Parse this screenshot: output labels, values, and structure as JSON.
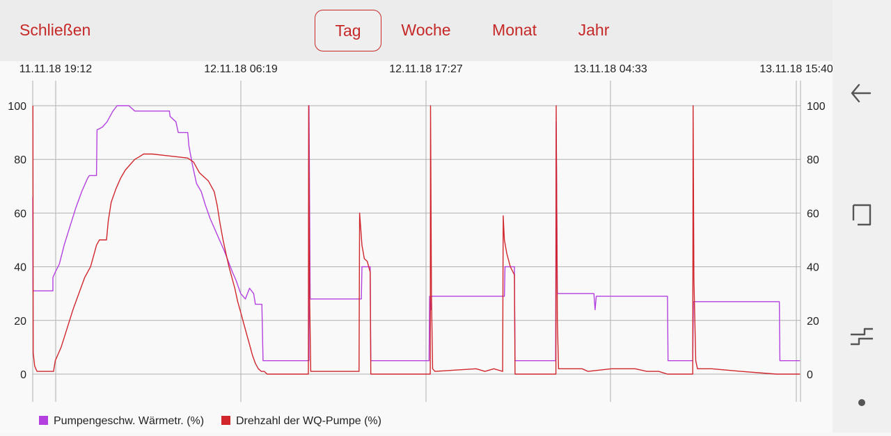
{
  "header": {
    "close_label": "Schließen",
    "tabs": [
      {
        "label": "Tag",
        "active": true
      },
      {
        "label": "Woche",
        "active": false
      },
      {
        "label": "Monat",
        "active": false
      },
      {
        "label": "Jahr",
        "active": false
      }
    ]
  },
  "colors": {
    "accent": "#c62828",
    "series_purple": "#b440e0",
    "series_red": "#d0262c",
    "grid": "#aaaaaa"
  },
  "nav_icons": [
    "back-icon",
    "recents-icon",
    "switch-icon",
    "dot-icon"
  ],
  "chart_data": {
    "type": "line",
    "title": "",
    "xlabel": "",
    "ylabel": "",
    "ylim": [
      0,
      100
    ],
    "y_ticks": [
      0,
      20,
      40,
      60,
      80,
      100
    ],
    "x_ticks": [
      "11.11.18 19:12",
      "12.11.18 06:19",
      "12.11.18 17:27",
      "13.11.18 04:33",
      "13.11.18 15:40"
    ],
    "x_unit": "hours since first tick",
    "grid": true,
    "legend": "bottom-left",
    "series": [
      {
        "name": "Pumpengeschw. Wärmetr. (%)",
        "color": "#b440e0",
        "points": [
          [
            -0.32,
            66
          ],
          [
            -0.3,
            33
          ],
          [
            -0.28,
            31
          ],
          [
            0.0,
            31
          ],
          [
            3.1,
            31
          ],
          [
            3.1,
            36
          ],
          [
            3.5,
            38
          ],
          [
            4.2,
            41
          ],
          [
            5.0,
            48
          ],
          [
            6.0,
            55
          ],
          [
            7.0,
            62
          ],
          [
            8.0,
            68
          ],
          [
            9.0,
            73
          ],
          [
            9.3,
            74
          ],
          [
            10.5,
            74
          ],
          [
            10.6,
            91
          ],
          [
            11.5,
            92
          ],
          [
            12.3,
            94
          ],
          [
            12.8,
            96
          ],
          [
            13.3,
            98
          ],
          [
            14.0,
            100
          ],
          [
            16.0,
            100
          ],
          [
            17.0,
            98
          ],
          [
            22.9,
            98
          ],
          [
            23.0,
            96
          ],
          [
            23.5,
            95
          ],
          [
            24.0,
            94
          ],
          [
            24.2,
            92
          ],
          [
            24.4,
            90
          ],
          [
            26.0,
            90
          ],
          [
            26.2,
            85
          ],
          [
            26.8,
            78
          ],
          [
            27.5,
            71
          ],
          [
            28.3,
            68
          ],
          [
            29.0,
            63
          ],
          [
            29.8,
            58
          ],
          [
            30.6,
            54
          ],
          [
            31.4,
            50
          ],
          [
            32.2,
            46
          ],
          [
            32.9,
            42
          ],
          [
            33.6,
            38
          ],
          [
            34.2,
            35
          ],
          [
            35.0,
            30
          ],
          [
            35.8,
            28
          ],
          [
            36.5,
            32
          ],
          [
            37.2,
            30
          ],
          [
            37.5,
            26
          ],
          [
            38.3,
            26
          ],
          [
            38.6,
            26
          ],
          [
            38.8,
            5
          ],
          [
            46.6,
            5
          ],
          [
            46.6,
            100
          ],
          [
            46.8,
            28
          ],
          [
            47.0,
            28
          ],
          [
            55.5,
            28
          ],
          [
            55.6,
            40
          ],
          [
            56.0,
            40
          ],
          [
            57.0,
            40
          ],
          [
            57.1,
            5
          ],
          [
            67.0,
            5
          ],
          [
            67.1,
            29
          ],
          [
            67.3,
            24
          ],
          [
            67.4,
            29
          ],
          [
            79.8,
            29
          ],
          [
            79.9,
            40
          ],
          [
            81.5,
            40
          ],
          [
            81.6,
            5
          ],
          [
            88.5,
            5
          ],
          [
            88.6,
            94
          ],
          [
            88.8,
            30
          ],
          [
            95.0,
            30
          ],
          [
            95.2,
            24
          ],
          [
            95.4,
            29
          ],
          [
            107.5,
            29
          ],
          [
            107.6,
            5
          ],
          [
            111.8,
            5
          ],
          [
            111.9,
            27
          ],
          [
            126.5,
            27
          ],
          [
            126.6,
            5
          ],
          [
            130.0,
            5
          ]
        ]
      },
      {
        "name": "Drehzahl der WQ-Pumpe (%)",
        "color": "#d0262c",
        "points": [
          [
            -0.3,
            100
          ],
          [
            -0.25,
            8
          ],
          [
            0.0,
            3
          ],
          [
            0.2,
            2
          ],
          [
            0.4,
            1
          ],
          [
            3.2,
            1
          ],
          [
            3.5,
            5
          ],
          [
            4.5,
            10
          ],
          [
            5.5,
            17
          ],
          [
            6.5,
            24
          ],
          [
            7.5,
            30
          ],
          [
            8.5,
            36
          ],
          [
            9.5,
            40
          ],
          [
            10.0,
            44
          ],
          [
            10.5,
            48
          ],
          [
            11.0,
            50
          ],
          [
            12.2,
            50
          ],
          [
            12.5,
            57
          ],
          [
            13.0,
            64
          ],
          [
            13.8,
            69
          ],
          [
            14.6,
            73
          ],
          [
            15.4,
            76
          ],
          [
            16.2,
            78
          ],
          [
            17.0,
            80
          ],
          [
            17.8,
            81
          ],
          [
            18.5,
            82
          ],
          [
            20.0,
            82
          ],
          [
            22.0,
            81.5
          ],
          [
            24.0,
            81
          ],
          [
            26.0,
            80.5
          ],
          [
            27.0,
            79
          ],
          [
            27.5,
            77
          ],
          [
            28.0,
            75
          ],
          [
            28.5,
            74
          ],
          [
            29.5,
            72
          ],
          [
            30.0,
            70
          ],
          [
            30.5,
            68
          ],
          [
            31.0,
            63
          ],
          [
            31.5,
            56
          ],
          [
            32.0,
            50
          ],
          [
            32.5,
            45
          ],
          [
            33.0,
            40
          ],
          [
            33.5,
            36
          ],
          [
            34.0,
            32
          ],
          [
            34.5,
            27
          ],
          [
            35.0,
            23
          ],
          [
            35.5,
            19
          ],
          [
            36.0,
            15
          ],
          [
            36.5,
            11
          ],
          [
            37.0,
            7
          ],
          [
            37.5,
            4
          ],
          [
            38.0,
            2
          ],
          [
            38.5,
            1
          ],
          [
            39.0,
            1
          ],
          [
            39.5,
            0
          ],
          [
            46.5,
            0
          ],
          [
            46.55,
            100
          ],
          [
            46.7,
            31
          ],
          [
            46.9,
            1
          ],
          [
            54.5,
            1
          ],
          [
            55.1,
            1
          ],
          [
            55.2,
            60
          ],
          [
            55.6,
            48
          ],
          [
            56.0,
            43
          ],
          [
            56.5,
            42
          ],
          [
            57.0,
            38
          ],
          [
            57.1,
            0
          ],
          [
            67.2,
            0
          ],
          [
            67.25,
            100
          ],
          [
            67.4,
            30
          ],
          [
            67.6,
            2
          ],
          [
            68.0,
            1
          ],
          [
            75.0,
            2
          ],
          [
            76.5,
            1
          ],
          [
            78.0,
            2
          ],
          [
            79.5,
            1
          ],
          [
            79.6,
            59
          ],
          [
            79.8,
            50
          ],
          [
            80.2,
            45
          ],
          [
            80.8,
            40
          ],
          [
            81.5,
            37
          ],
          [
            81.6,
            0
          ],
          [
            88.55,
            0
          ],
          [
            88.6,
            100
          ],
          [
            88.8,
            20
          ],
          [
            89.0,
            2
          ],
          [
            91.0,
            2
          ],
          [
            93.0,
            2
          ],
          [
            94.0,
            1
          ],
          [
            98.0,
            2
          ],
          [
            100.0,
            2
          ],
          [
            102.0,
            2
          ],
          [
            104.0,
            1
          ],
          [
            106.0,
            1
          ],
          [
            107.5,
            0
          ],
          [
            111.8,
            0
          ],
          [
            111.85,
            100
          ],
          [
            112.0,
            35
          ],
          [
            112.3,
            5
          ],
          [
            112.6,
            2
          ],
          [
            115.0,
            2
          ],
          [
            120.0,
            1
          ],
          [
            126.0,
            0
          ],
          [
            130.0,
            0
          ]
        ]
      }
    ]
  }
}
